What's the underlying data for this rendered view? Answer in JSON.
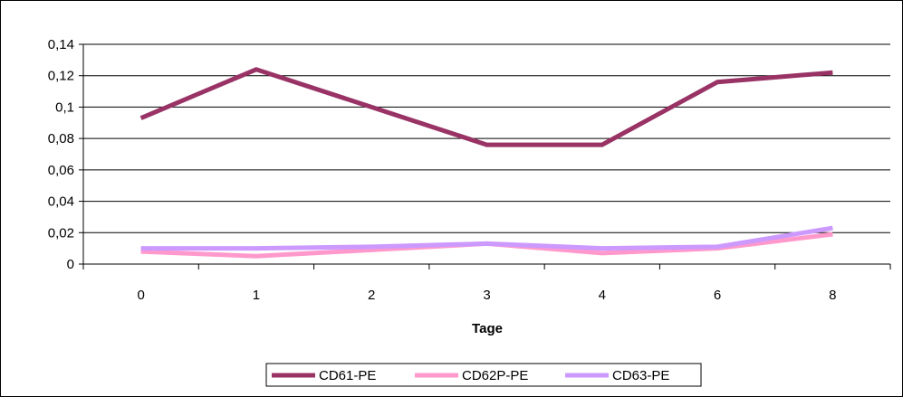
{
  "chart_data": {
    "type": "line",
    "xlabel": "Tage",
    "ylabel": "",
    "title": "",
    "categories": [
      "0",
      "1",
      "2",
      "3",
      "4",
      "6",
      "8"
    ],
    "ylim": [
      0,
      0.14
    ],
    "yticks": [
      "0",
      "0,02",
      "0,04",
      "0,06",
      "0,08",
      "0,1",
      "0,12",
      "0,14"
    ],
    "ytick_values": [
      0,
      0.02,
      0.04,
      0.06,
      0.08,
      0.1,
      0.12,
      0.14
    ],
    "grid": true,
    "legend_position": "bottom",
    "series": [
      {
        "name": "CD61-PE",
        "color": "#993366",
        "values": [
          0.093,
          0.124,
          0.1,
          0.076,
          0.076,
          0.116,
          0.122
        ]
      },
      {
        "name": "CD62P-PE",
        "color": "#ff99cc",
        "values": [
          0.008,
          0.005,
          0.009,
          0.013,
          0.007,
          0.01,
          0.019
        ]
      },
      {
        "name": "CD63-PE",
        "color": "#cc99ff",
        "values": [
          0.01,
          0.01,
          0.011,
          0.013,
          0.01,
          0.011,
          0.023
        ]
      }
    ]
  }
}
